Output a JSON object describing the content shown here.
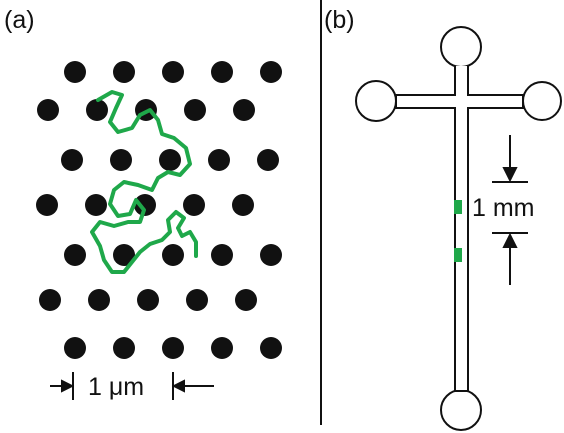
{
  "panel_a": {
    "label": "(a)",
    "scale_label": "1 μm"
  },
  "panel_b": {
    "label": "(b)",
    "scale_label": "1 mm"
  }
}
